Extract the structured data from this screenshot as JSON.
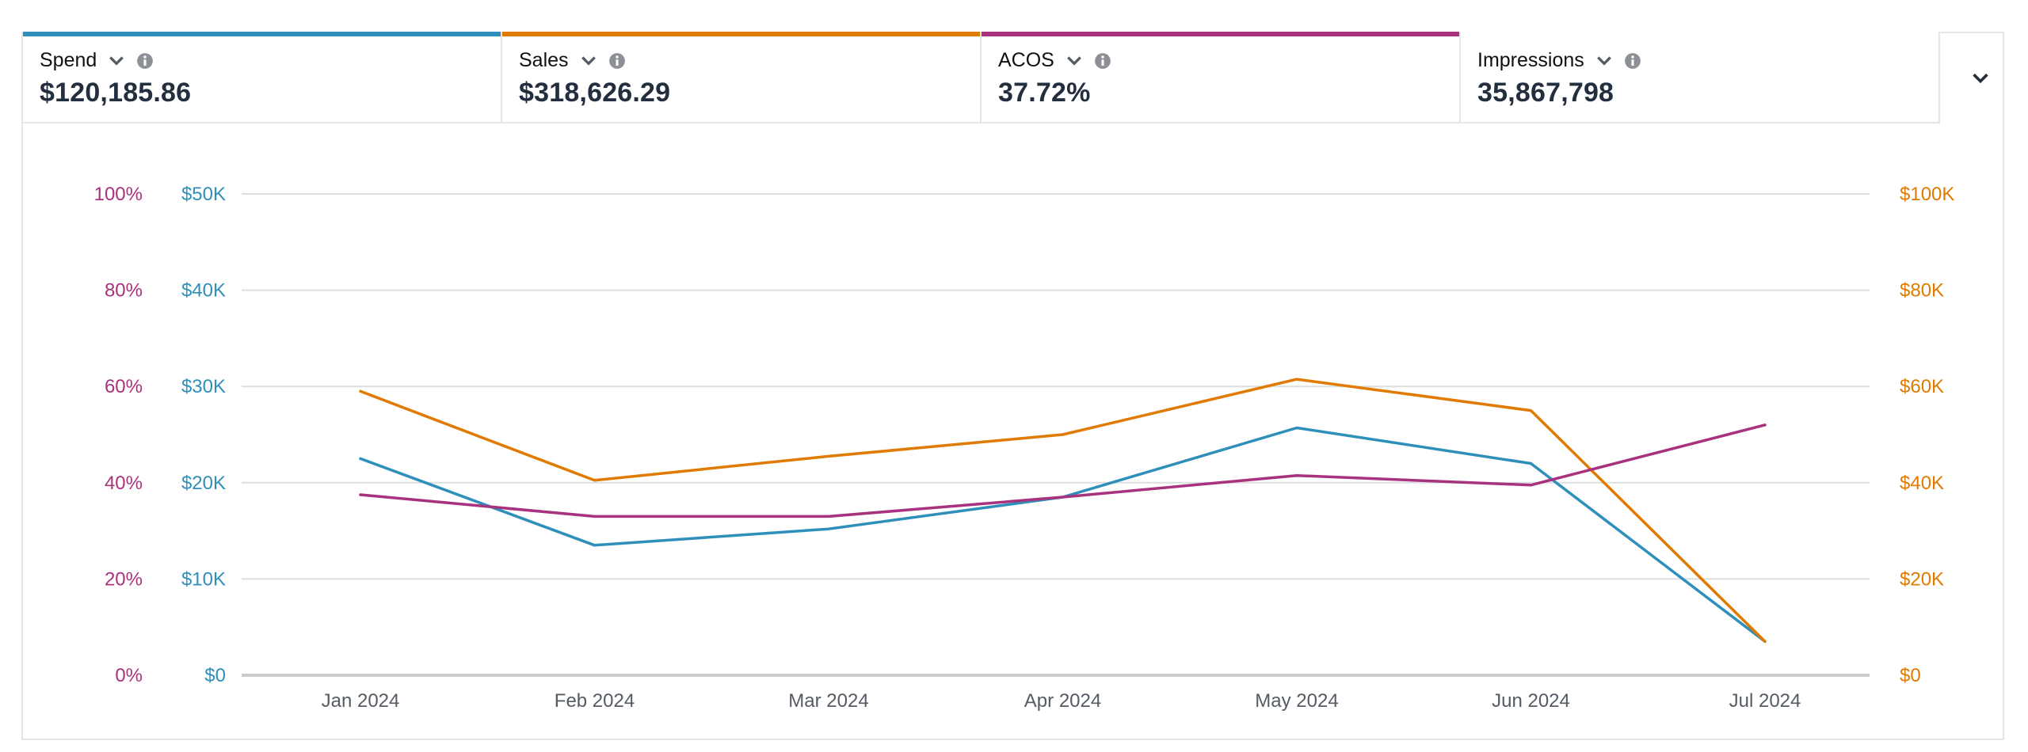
{
  "metrics": [
    {
      "label": "Spend",
      "value": "$120,185.86",
      "color": "#2e8fbb",
      "icon": "chevron-down-icon"
    },
    {
      "label": "Sales",
      "value": "$318,626.29",
      "color": "#e07a00",
      "icon": "chevron-down-icon"
    },
    {
      "label": "ACOS",
      "value": "37.72%",
      "color": "#a8327e",
      "icon": "chevron-down-icon"
    },
    {
      "label": "Impressions",
      "value": "35,867,798",
      "color": "#ffffff",
      "icon": "chevron-down-icon"
    }
  ],
  "expand_icon": "chevron-down-icon",
  "colors": {
    "spend": "#2e8fbb",
    "sales": "#e07a00",
    "acos": "#a8327e",
    "grid": "#dcdfe0",
    "axis_baseline": "#c9cccc",
    "x_tick": "#545b64"
  },
  "chart_data": {
    "type": "line",
    "categories": [
      "Jan 2024",
      "Feb 2024",
      "Mar 2024",
      "Apr 2024",
      "May 2024",
      "Jun 2024",
      "Jul 2024"
    ],
    "axes": {
      "left_outer": {
        "ticks": [
          "0%",
          "20%",
          "40%",
          "60%",
          "80%",
          "100%"
        ],
        "range": [
          0,
          100
        ],
        "series": "ACOS"
      },
      "left_inner": {
        "ticks": [
          "$0",
          "$10K",
          "$20K",
          "$30K",
          "$40K",
          "$50K"
        ],
        "range": [
          0,
          50000
        ],
        "series": "Spend"
      },
      "right": {
        "ticks": [
          "$0",
          "$20K",
          "$40K",
          "$60K",
          "$80K",
          "$100K"
        ],
        "range": [
          0,
          100000
        ],
        "series": "Sales"
      }
    },
    "series": [
      {
        "name": "Spend",
        "axis": "left_inner",
        "color": "#2e8fbb",
        "values": [
          22500,
          13500,
          15200,
          18500,
          25700,
          22000,
          3500
        ]
      },
      {
        "name": "Sales",
        "axis": "right",
        "color": "#e07a00",
        "values": [
          59000,
          40500,
          45500,
          50000,
          61500,
          55000,
          7000
        ]
      },
      {
        "name": "ACOS",
        "axis": "left_outer",
        "color": "#a8327e",
        "values": [
          37.5,
          33,
          33,
          37,
          41.5,
          39.5,
          52
        ]
      }
    ],
    "grid": true
  }
}
